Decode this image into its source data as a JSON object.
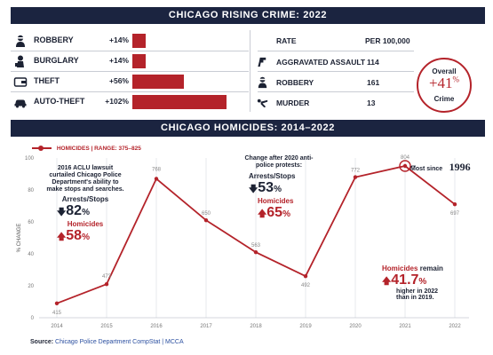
{
  "top_title": "CHICAGO RISING CRIME: 2022",
  "crimes": [
    {
      "label": "ROBBERY",
      "pct": "+14%",
      "value": 14,
      "icon": "robber-icon"
    },
    {
      "label": "BURGLARY",
      "pct": "+14%",
      "value": 14,
      "icon": "burglar-icon"
    },
    {
      "label": "THEFT",
      "pct": "+56%",
      "value": 56,
      "icon": "wallet-icon"
    },
    {
      "label": "AUTO-THEFT",
      "pct": "+102%",
      "value": 102,
      "icon": "car-icon"
    }
  ],
  "rate_table": {
    "header_left": "RATE",
    "header_right": "PER 100,000",
    "rows": [
      {
        "label": "AGGRAVATED ASSAULT",
        "value": "114",
        "icon": "gun-icon"
      },
      {
        "label": "ROBBERY",
        "value": "161",
        "icon": "robber-icon"
      },
      {
        "label": "MURDER",
        "value": "13",
        "icon": "body-icon"
      }
    ]
  },
  "overall": {
    "top": "Overall",
    "value": "+41",
    "suffix": "%",
    "bottom": "Crime"
  },
  "chart_title": "CHICAGO HOMICIDES: 2014–2022",
  "source": {
    "label": "Source:",
    "text": "Chicago Police Department CompStat | MCCA"
  },
  "colors": {
    "navy": "#1b2440",
    "red": "#b4232a"
  },
  "chart_data": {
    "type": "line",
    "title": "CHICAGO HOMICIDES: 2014–2022",
    "legend": "HOMICIDES | RANGE: 375–825",
    "ylabel": "% CHANGE",
    "xlabel": "",
    "ylim": [
      0,
      100
    ],
    "yticks": [
      "0",
      "20",
      "40",
      "60",
      "80",
      "100"
    ],
    "x": [
      "2014",
      "2015",
      "2016",
      "2017",
      "2018",
      "2019",
      "2020",
      "2021",
      "2022"
    ],
    "series": [
      {
        "name": "HOMICIDES",
        "values": [
          415,
          473,
          768,
          650,
          563,
          492,
          772,
          804,
          697
        ]
      }
    ],
    "y_plot_percent": [
      9,
      21,
      87,
      61,
      41,
      26,
      88,
      95,
      71
    ],
    "grid": "vertical",
    "annotations": {
      "aclu": {
        "text": "2016 ACLU lawsuit curtailed Chicago Police Department's ability to make stops and searches.",
        "stops_label": "Arrests/Stops",
        "stops_value": "82",
        "hom_label": "Homicides",
        "hom_value": "58"
      },
      "protests": {
        "text": "Change after 2020 anti-police protests:",
        "stops_label": "Arrests/Stops",
        "stops_value": "53",
        "hom_label": "Homicides",
        "hom_value": "65"
      },
      "most_since": {
        "text": "Most since",
        "year": "1996"
      },
      "remain": {
        "label": "Homicides",
        "rest": "remain",
        "value": "41.7",
        "text2": "higher in 2022",
        "text3": "than in 2019."
      }
    }
  }
}
